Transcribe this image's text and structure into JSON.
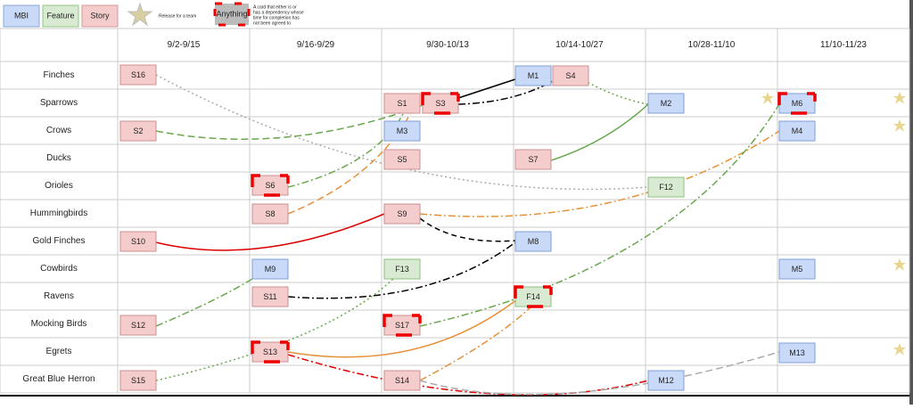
{
  "legend": {
    "items": [
      "MBI",
      "Feature",
      "Story"
    ],
    "release": "Release for a team",
    "anything": "Anything",
    "anything_note": [
      "A card that either is or",
      "has a dependency whose",
      "time for completion has",
      "not been agreed to"
    ]
  },
  "table": {
    "columns": [
      "9/2-9/15",
      "9/16-9/29",
      "9/30-10/13",
      "10/14-10/27",
      "10/28-11/10",
      "11/10-11/23"
    ],
    "rows": [
      "Finches",
      "Sparrows",
      "Crows",
      "Ducks",
      "Orioles",
      "Hummingbirds",
      "Gold Finches",
      "Cowbirds",
      "Ravens",
      "Mocking Birds",
      "Egrets",
      "Great Blue Herron"
    ]
  },
  "cards": [
    "S16",
    "M1",
    "S4",
    "S1",
    "S3",
    "M2",
    "M6",
    "S2",
    "M3",
    "M4",
    "S5",
    "S7",
    "S6",
    "F12",
    "S8",
    "S9",
    "S10",
    "M8",
    "M9",
    "F13",
    "M5",
    "S11",
    "F14",
    "S12",
    "S17",
    "S13",
    "M13",
    "S15",
    "S14",
    "M12"
  ]
}
